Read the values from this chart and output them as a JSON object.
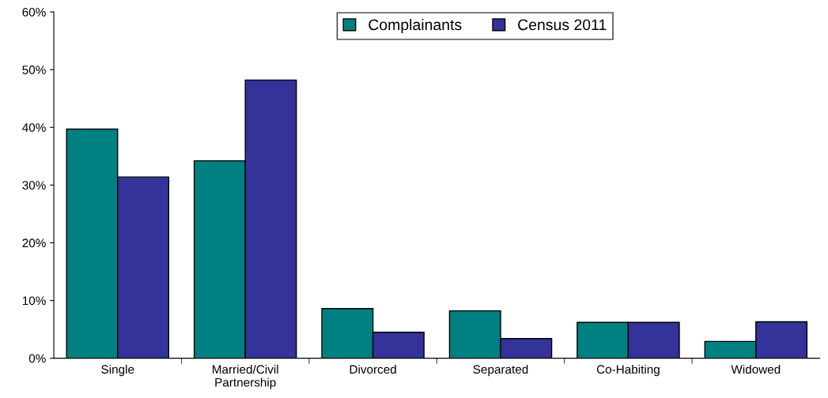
{
  "chart_data": {
    "type": "bar",
    "categories": [
      "Single",
      "Married/Civil\nPartnership",
      "Divorced",
      "Separated",
      "Co-Habiting",
      "Widowed"
    ],
    "series": [
      {
        "name": "Complainants",
        "color": "#008080",
        "values": [
          39.7,
          34.2,
          8.6,
          8.2,
          6.2,
          2.9
        ]
      },
      {
        "name": "Census 2011",
        "color": "#333399",
        "values": [
          31.4,
          48.2,
          4.5,
          3.4,
          6.2,
          6.3
        ]
      }
    ],
    "ylim": [
      0,
      60
    ],
    "yticks": [
      {
        "value": 0,
        "label": "0%"
      },
      {
        "value": 10,
        "label": "10%"
      },
      {
        "value": 20,
        "label": "20%"
      },
      {
        "value": 30,
        "label": "30%"
      },
      {
        "value": 40,
        "label": "40%"
      },
      {
        "value": 50,
        "label": "50%"
      },
      {
        "value": 60,
        "label": "60%"
      }
    ],
    "grid": false,
    "legend": "top"
  }
}
